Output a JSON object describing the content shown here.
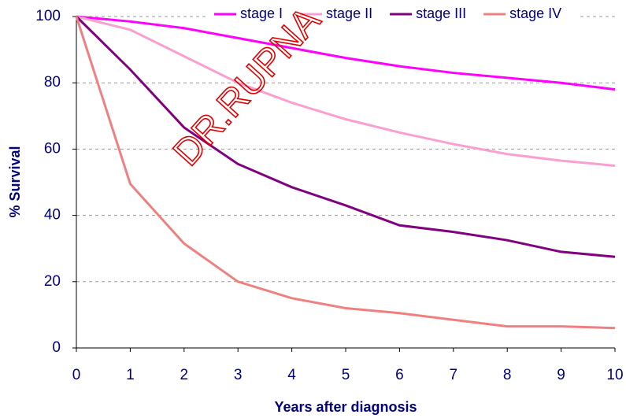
{
  "chart_data": {
    "type": "line",
    "xlabel": "Years after diagnosis",
    "ylabel": "% Survival",
    "annotation": "DR.RUPNA",
    "x": [
      0,
      1,
      2,
      3,
      4,
      5,
      6,
      7,
      8,
      9,
      10
    ],
    "xlim": [
      0,
      10
    ],
    "xticks": [
      0,
      1,
      2,
      3,
      4,
      5,
      6,
      7,
      8,
      9,
      10
    ],
    "ylim": [
      0,
      100
    ],
    "yticks": [
      0,
      20,
      40,
      60,
      80,
      100
    ],
    "grid": true,
    "legend": "top",
    "series": [
      {
        "name": "stage I",
        "color": "#ff00ff",
        "values": [
          100,
          98.5,
          96.5,
          93.5,
          90.5,
          87.5,
          85,
          83,
          81.5,
          80,
          78
        ]
      },
      {
        "name": "stage II",
        "color": "#f9a0d0",
        "values": [
          100,
          96,
          88,
          80,
          74,
          69,
          65,
          61.5,
          58.5,
          56.5,
          55
        ]
      },
      {
        "name": "stage III",
        "color": "#800080",
        "values": [
          100,
          84,
          66.5,
          55.5,
          48.5,
          43,
          37,
          35,
          32.5,
          29,
          27.5
        ]
      },
      {
        "name": "stage IV",
        "color": "#f08080",
        "values": [
          100,
          49.5,
          31.5,
          20,
          15,
          12,
          10.5,
          8.5,
          6.5,
          6.5,
          6
        ]
      }
    ]
  }
}
